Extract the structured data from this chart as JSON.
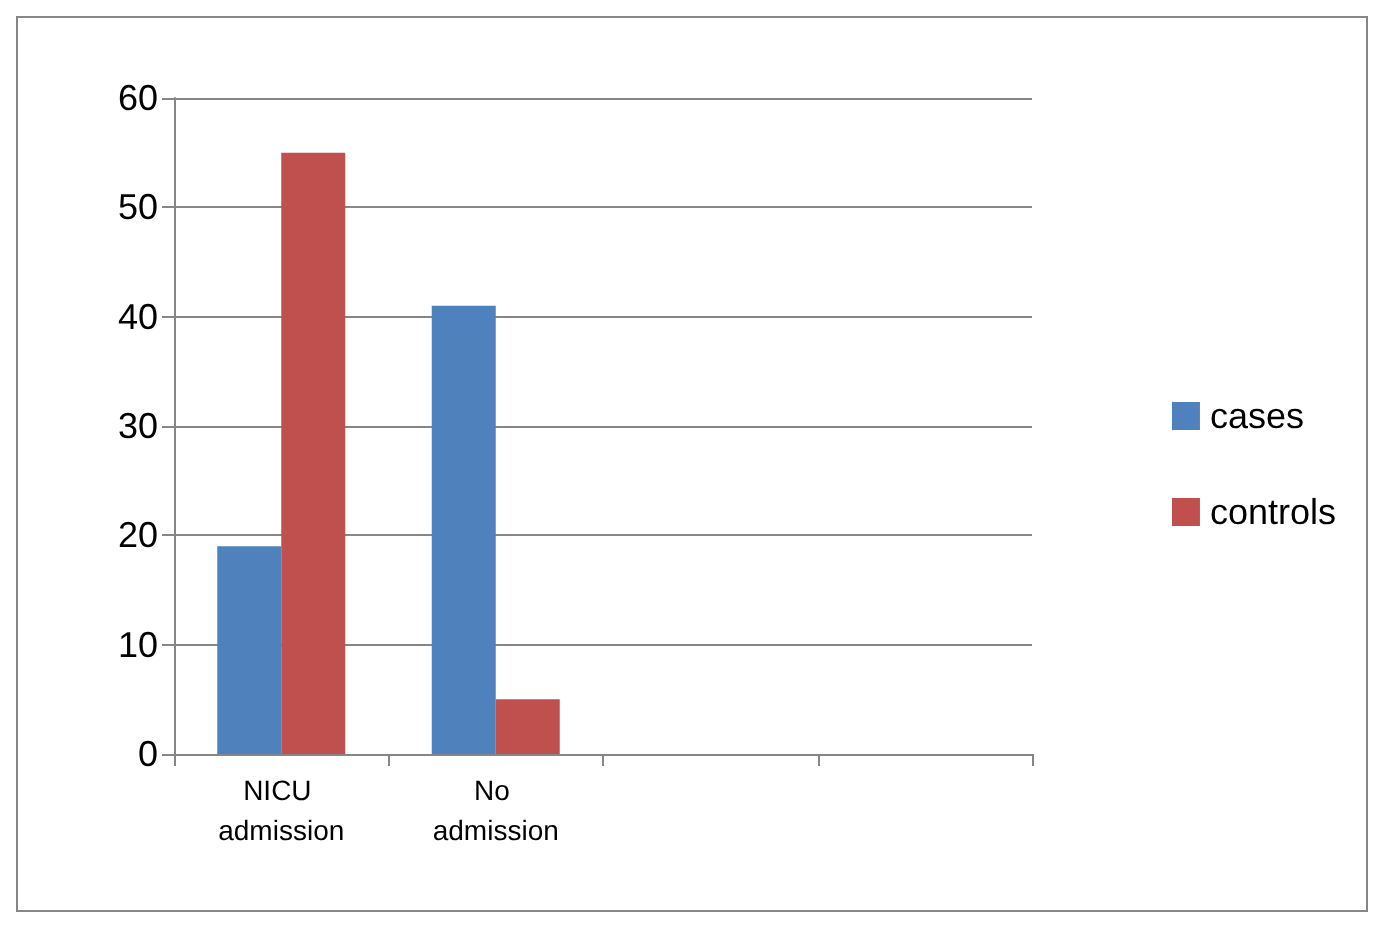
{
  "chart_data": {
    "type": "bar",
    "categories": [
      "NICU admission",
      "No admission",
      null,
      null
    ],
    "series": [
      {
        "name": "cases",
        "color": "#4f81bd",
        "values": [
          19,
          41,
          null,
          null
        ]
      },
      {
        "name": "controls",
        "color": "#c0504d",
        "values": [
          55,
          5,
          null,
          null
        ]
      }
    ],
    "ylim": [
      0,
      60
    ],
    "yticks": [
      0,
      10,
      20,
      30,
      40,
      50,
      60
    ],
    "grid": "y",
    "legend": "right"
  }
}
